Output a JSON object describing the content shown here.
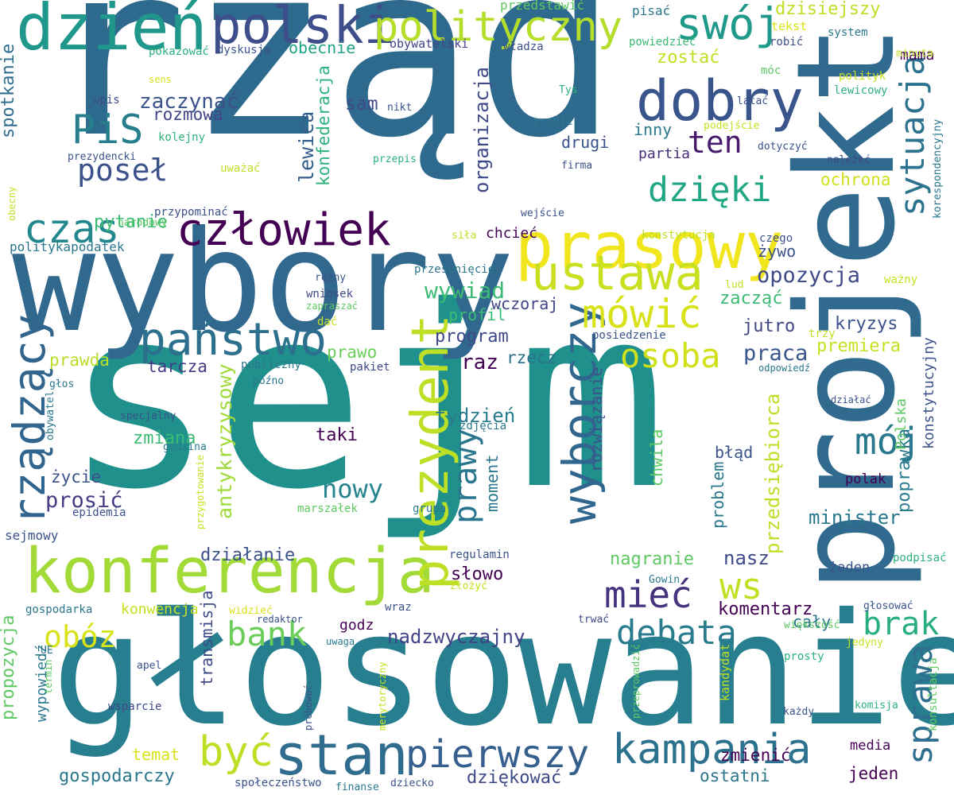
{
  "words": [
    {
      "text": "rząd",
      "color": "#2e6a8e",
      "rot": 0
    },
    {
      "text": "sejm",
      "color": "#20908d",
      "rot": 0
    },
    {
      "text": "głosowanie",
      "color": "#277e8e",
      "rot": 0
    },
    {
      "text": "wybory",
      "color": "#30688e",
      "rot": 0
    },
    {
      "text": "projekt",
      "color": "#306a8e",
      "rot": -90
    },
    {
      "text": "konferencja",
      "color": "#a2da37",
      "rot": 0
    },
    {
      "text": "prasowy",
      "color": "#f1e51d",
      "rot": 0
    },
    {
      "text": "dzień",
      "color": "#1f988b",
      "rot": 0
    },
    {
      "text": "polski",
      "color": "#3d4e8a",
      "rot": 0
    },
    {
      "text": "polityczny",
      "color": "#b5de2b",
      "rot": 0
    },
    {
      "text": "dobry",
      "color": "#39558c",
      "rot": 0
    },
    {
      "text": "swój",
      "color": "#1f9a8a",
      "rot": 0
    },
    {
      "text": "człowiek",
      "color": "#440154",
      "rot": 0
    },
    {
      "text": "ustawa",
      "color": "#c8e020",
      "rot": 0
    },
    {
      "text": "państwo",
      "color": "#2d708e",
      "rot": 0
    },
    {
      "text": "czas",
      "color": "#23888e",
      "rot": 0
    },
    {
      "text": "PiS",
      "color": "#277f8e",
      "rot": 0
    },
    {
      "text": "poseł",
      "color": "#3b528b",
      "rot": 0
    },
    {
      "text": "dzięki",
      "color": "#22a785",
      "rot": 0
    },
    {
      "text": "ten",
      "color": "#481a6c",
      "rot": 0
    },
    {
      "text": "sytuacja",
      "color": "#2c728e",
      "rot": -90
    },
    {
      "text": "wyborczy",
      "color": "#31668e",
      "rot": -90
    },
    {
      "text": "prezydent",
      "color": "#bddf26",
      "rot": -90
    },
    {
      "text": "rządzący",
      "color": "#31658e",
      "rot": -90
    },
    {
      "text": "mówić",
      "color": "#d8e219",
      "rot": 0
    },
    {
      "text": "mieć",
      "color": "#46337e",
      "rot": 0
    },
    {
      "text": "osoba",
      "color": "#d0e11c",
      "rot": 0
    },
    {
      "text": "mój",
      "color": "#2a788e",
      "rot": 0
    },
    {
      "text": "kampania",
      "color": "#2c718e",
      "rot": 0
    },
    {
      "text": "pierwszy",
      "color": "#355f8d",
      "rot": 0
    },
    {
      "text": "stan",
      "color": "#2f6c8e",
      "rot": 0
    },
    {
      "text": "być",
      "color": "#bddf26",
      "rot": 0
    },
    {
      "text": "bank",
      "color": "#6ccd5a",
      "rot": 0
    },
    {
      "text": "obóz",
      "color": "#d8e219",
      "rot": 0
    },
    {
      "text": "debata",
      "color": "#287c8e",
      "rot": 0
    },
    {
      "text": "brak",
      "color": "#29af7f",
      "rot": 0
    },
    {
      "text": "sprawa",
      "color": "#2e6e8e",
      "rot": -90
    },
    {
      "text": "ws",
      "color": "#c2df23",
      "rot": 0
    },
    {
      "text": "prawy",
      "color": "#2a768e",
      "rot": -90
    },
    {
      "text": "nowy",
      "color": "#25848e",
      "rot": 0
    },
    {
      "text": "wywiad",
      "color": "#3cbb75",
      "rot": 0
    },
    {
      "text": "opozycja",
      "color": "#3e4a89",
      "rot": 0
    },
    {
      "text": "kryzys",
      "color": "#3b528b",
      "rot": 0
    },
    {
      "text": "praca",
      "color": "#3a548c",
      "rot": 0
    },
    {
      "text": "premiera",
      "color": "#c8e020",
      "rot": 0
    },
    {
      "text": "jutro",
      "color": "#414487",
      "rot": 0
    },
    {
      "text": "raz",
      "color": "#440154",
      "rot": 0
    },
    {
      "text": "tarcza",
      "color": "#433e85",
      "rot": 0
    },
    {
      "text": "prawda",
      "color": "#bade28",
      "rot": 0
    },
    {
      "text": "prawo",
      "color": "#6ccd5a",
      "rot": 0
    },
    {
      "text": "program",
      "color": "#3e4a89",
      "rot": 0
    },
    {
      "text": "rzecz",
      "color": "#2c728e",
      "rot": 0
    },
    {
      "text": "tydzień",
      "color": "#287c8e",
      "rot": 0
    },
    {
      "text": "taki",
      "color": "#440154",
      "rot": 0
    },
    {
      "text": "zmiana",
      "color": "#3cbb75",
      "rot": 0
    },
    {
      "text": "życie",
      "color": "#3b528b",
      "rot": 0
    },
    {
      "text": "prosić",
      "color": "#433e85",
      "rot": 0
    },
    {
      "text": "antykryzysowy",
      "color": "#a0da39",
      "rot": -90
    },
    {
      "text": "lewica",
      "color": "#355f8d",
      "rot": -90
    },
    {
      "text": "konfederacja",
      "color": "#2db27d",
      "rot": -90
    },
    {
      "text": "organizacja",
      "color": "#3e4a89",
      "rot": -90
    },
    {
      "text": "spotkanie",
      "color": "#2e6e8e",
      "rot": -90
    },
    {
      "text": "zaczynać",
      "color": "#3b528b",
      "rot": 0
    },
    {
      "text": "rozmowa",
      "color": "#414487",
      "rot": 0
    },
    {
      "text": "sam",
      "color": "#3e4a89",
      "rot": 0
    },
    {
      "text": "drugi",
      "color": "#3b528b",
      "rot": 0
    },
    {
      "text": "obecnie",
      "color": "#20a386",
      "rot": 0
    },
    {
      "text": "zostać",
      "color": "#c2df23",
      "rot": 0
    },
    {
      "text": "dzisiejszy",
      "color": "#bddf26",
      "rot": 0
    },
    {
      "text": "mama",
      "color": "#440154",
      "rot": 0
    },
    {
      "text": "pytanie",
      "color": "#3cbb75",
      "rot": 0
    },
    {
      "text": "ochrona",
      "color": "#d0e11c",
      "rot": 0
    },
    {
      "text": "żywo",
      "color": "#3b528b",
      "rot": 0
    },
    {
      "text": "zacząć",
      "color": "#3cbb75",
      "rot": 0
    },
    {
      "text": "inny",
      "color": "#2a788e",
      "rot": 0
    },
    {
      "text": "partia",
      "color": "#472d7b",
      "rot": 0
    },
    {
      "text": "chcieć",
      "color": "#440154",
      "rot": 0
    },
    {
      "text": "profil",
      "color": "#3cbb75",
      "rot": 0
    },
    {
      "text": "wczoraj",
      "color": "#414487",
      "rot": 0
    },
    {
      "text": "rozwiązanie",
      "color": "#3b528b",
      "rot": -90
    },
    {
      "text": "moment",
      "color": "#2a788e",
      "rot": -90
    },
    {
      "text": "słowo",
      "color": "#440154",
      "rot": 0
    },
    {
      "text": "nagranie",
      "color": "#5ec962",
      "rot": 0
    },
    {
      "text": "komentarz",
      "color": "#440154",
      "rot": 0
    },
    {
      "text": "nasz",
      "color": "#3e4a89",
      "rot": 0
    },
    {
      "text": "minister",
      "color": "#2a788e",
      "rot": 0
    },
    {
      "text": "przedsiębiorca",
      "color": "#bddf26",
      "rot": -90
    },
    {
      "text": "poprawka",
      "color": "#287c8e",
      "rot": -90
    },
    {
      "text": "Polska",
      "color": "#5ec962",
      "rot": -90
    },
    {
      "text": "konstytucyjny",
      "color": "#3b528b",
      "rot": -90
    },
    {
      "text": "chwila",
      "color": "#5ec962",
      "rot": -90
    },
    {
      "text": "błąd",
      "color": "#3b528b",
      "rot": 0
    },
    {
      "text": "problem",
      "color": "#2a788e",
      "rot": -90
    },
    {
      "text": "polak",
      "color": "#440154",
      "rot": 0
    },
    {
      "text": "żaden",
      "color": "#3b528b",
      "rot": 0
    },
    {
      "text": "cały",
      "color": "#2a788e",
      "rot": 0
    },
    {
      "text": "nadzwyczajny",
      "color": "#414487",
      "rot": 0
    },
    {
      "text": "godz",
      "color": "#440154",
      "rot": 0
    },
    {
      "text": "konwencja",
      "color": "#c8e020",
      "rot": 0
    },
    {
      "text": "działanie",
      "color": "#3b528b",
      "rot": 0
    },
    {
      "text": "propozycja",
      "color": "#5ec962",
      "rot": -90
    },
    {
      "text": "wypowiedź",
      "color": "#2a788e",
      "rot": -90
    },
    {
      "text": "transmisja",
      "color": "#3e4a89",
      "rot": -90
    },
    {
      "text": "temat",
      "color": "#d8e219",
      "rot": 0
    },
    {
      "text": "gospodarczy",
      "color": "#2a788e",
      "rot": 0
    },
    {
      "text": "dziękować",
      "color": "#3e4a89",
      "rot": 0
    },
    {
      "text": "ostatni",
      "color": "#2a788e",
      "rot": 0
    },
    {
      "text": "zmienić",
      "color": "#440154",
      "rot": 0
    },
    {
      "text": "jeden",
      "color": "#440154",
      "rot": 0
    },
    {
      "text": "media",
      "color": "#440154",
      "rot": 0
    },
    {
      "text": "przedstawić",
      "color": "#5ec962",
      "rot": 0
    },
    {
      "text": "pisać",
      "color": "#2a788e",
      "rot": 0
    },
    {
      "text": "tekst",
      "color": "#d8e219",
      "rot": 0
    },
    {
      "text": "powiedzieć",
      "color": "#3cbb75",
      "rot": 0
    },
    {
      "text": "robić",
      "color": "#3b528b",
      "rot": 0
    },
    {
      "text": "system",
      "color": "#2a788e",
      "rot": 0
    },
    {
      "text": "minuta",
      "color": "#bddf26",
      "rot": 0
    },
    {
      "text": "pokazować",
      "color": "#2db27d",
      "rot": 0
    },
    {
      "text": "dyskusja",
      "color": "#3b528b",
      "rot": 0
    },
    {
      "text": "obywatelski",
      "color": "#414487",
      "rot": 0
    },
    {
      "text": "władza",
      "color": "#3b528b",
      "rot": 0
    },
    {
      "text": "móc",
      "color": "#5ec962",
      "rot": 0
    },
    {
      "text": "polityk",
      "color": "#c8e020",
      "rot": 0
    },
    {
      "text": "lewicowy",
      "color": "#2db27d",
      "rot": 0
    },
    {
      "text": "sens",
      "color": "#d8e219",
      "rot": 0
    },
    {
      "text": "wpis",
      "color": "#3e4a89",
      "rot": 0
    },
    {
      "text": "nikt",
      "color": "#3b528b",
      "rot": 0
    },
    {
      "text": "Tys",
      "color": "#2db27d",
      "rot": 0
    },
    {
      "text": "latać",
      "color": "#3b528b",
      "rot": 0
    },
    {
      "text": "zrobić",
      "color": "#2a788e",
      "rot": 0
    },
    {
      "text": "podejście",
      "color": "#c2df23",
      "rot": 0
    },
    {
      "text": "kolejny",
      "color": "#2db27d",
      "rot": 0
    },
    {
      "text": "dotyczyć",
      "color": "#3b528b",
      "rot": 0
    },
    {
      "text": "prezydencki",
      "color": "#3b528b",
      "rot": 0
    },
    {
      "text": "firma",
      "color": "#3b528b",
      "rot": 0
    },
    {
      "text": "należeć",
      "color": "#3e4a89",
      "rot": 0
    },
    {
      "text": "korespondencyjny",
      "color": "#2a788e",
      "rot": -90
    },
    {
      "text": "przepis",
      "color": "#2db27d",
      "rot": 0
    },
    {
      "text": "uważać",
      "color": "#bddf26",
      "rot": 0
    },
    {
      "text": "przypominać",
      "color": "#3b528b",
      "rot": 0
    },
    {
      "text": "wejście",
      "color": "#3b528b",
      "rot": 0
    },
    {
      "text": "konstytucja",
      "color": "#bddf26",
      "rot": 0
    },
    {
      "text": "czego",
      "color": "#3b528b",
      "rot": 0
    },
    {
      "text": "narodowy",
      "color": "#5ec962",
      "rot": 0
    },
    {
      "text": "obecny",
      "color": "#c8e020",
      "rot": -90
    },
    {
      "text": "siła",
      "color": "#bddf26",
      "rot": 0
    },
    {
      "text": "politykapodatek",
      "color": "#2a788e",
      "rot": 0
    },
    {
      "text": "przesunięcie",
      "color": "#2a788e",
      "rot": 0
    },
    {
      "text": "lud",
      "color": "#c2df23",
      "rot": 0
    },
    {
      "text": "ważny",
      "color": "#c8e020",
      "rot": 0
    },
    {
      "text": "różny",
      "color": "#3b528b",
      "rot": 0
    },
    {
      "text": "wniosek",
      "color": "#3e4a89",
      "rot": 0
    },
    {
      "text": "zapraszać",
      "color": "#5ec962",
      "rot": 0
    },
    {
      "text": "dać",
      "color": "#c8e020",
      "rot": 0
    },
    {
      "text": "trzy",
      "color": "#c2df23",
      "rot": 0
    },
    {
      "text": "posiedzenie",
      "color": "#3b528b",
      "rot": 0
    },
    {
      "text": "odpowiedź",
      "color": "#2a788e",
      "rot": 0
    },
    {
      "text": "głos",
      "color": "#2a788e",
      "rot": 0
    },
    {
      "text": "publiczny",
      "color": "#2a788e",
      "rot": 0
    },
    {
      "text": "pakiet",
      "color": "#3e4a89",
      "rot": 0
    },
    {
      "text": "późno",
      "color": "#2a788e",
      "rot": 0
    },
    {
      "text": "działać",
      "color": "#3b528b",
      "rot": 0
    },
    {
      "text": "specjalny",
      "color": "#3b528b",
      "rot": 0
    },
    {
      "text": "obywatel",
      "color": "#2a788e",
      "rot": -90
    },
    {
      "text": "zdjęcia",
      "color": "#2a788e",
      "rot": 0
    },
    {
      "text": "godzina",
      "color": "#2a788e",
      "rot": 0
    },
    {
      "text": "przygotowanie",
      "color": "#c8e020",
      "rot": -90
    },
    {
      "text": "epidemia",
      "color": "#3b528b",
      "rot": 0
    },
    {
      "text": "grupa",
      "color": "#2a788e",
      "rot": 0
    },
    {
      "text": "marszałek",
      "color": "#5ec962",
      "rot": 0
    },
    {
      "text": "sejmowy",
      "color": "#3b528b",
      "rot": 0
    },
    {
      "text": "regulamin",
      "color": "#3b528b",
      "rot": 0
    },
    {
      "text": "złożyć",
      "color": "#c8e020",
      "rot": 0
    },
    {
      "text": "Gowin",
      "color": "#2a788e",
      "rot": 0
    },
    {
      "text": "podpisać",
      "color": "#2db27d",
      "rot": 0
    },
    {
      "text": "gospodarka",
      "color": "#2a788e",
      "rot": 0
    },
    {
      "text": "widzieć",
      "color": "#d8e219",
      "rot": 0
    },
    {
      "text": "redaktor",
      "color": "#3b528b",
      "rot": 0
    },
    {
      "text": "wraz",
      "color": "#3b528b",
      "rot": 0
    },
    {
      "text": "trwać",
      "color": "#3e4a89",
      "rot": 0
    },
    {
      "text": "głosować",
      "color": "#3b528b",
      "rot": 0
    },
    {
      "text": "większość",
      "color": "#5ec962",
      "rot": 0
    },
    {
      "text": "jedyny",
      "color": "#c8e020",
      "rot": 0
    },
    {
      "text": "UE",
      "color": "#2a788e",
      "rot": 0
    },
    {
      "text": "apel",
      "color": "#3b528b",
      "rot": 0
    },
    {
      "text": "uwaga",
      "color": "#2a788e",
      "rot": 0
    },
    {
      "text": "merytoryczny",
      "color": "#c8e020",
      "rot": -90
    },
    {
      "text": "kandydat",
      "color": "#c2df23",
      "rot": -90
    },
    {
      "text": "prosty",
      "color": "#2db27d",
      "rot": 0
    },
    {
      "text": "konsultacja",
      "color": "#5ec962",
      "rot": -90
    },
    {
      "text": "komisja",
      "color": "#2db27d",
      "rot": 0
    },
    {
      "text": "każdy",
      "color": "#3b528b",
      "rot": 0
    },
    {
      "text": "termin",
      "color": "#5ec962",
      "rot": -90
    },
    {
      "text": "wsparcie",
      "color": "#3e4a89",
      "rot": 0
    },
    {
      "text": "próbować",
      "color": "#3b528b",
      "rot": -90
    },
    {
      "text": "przeprowadzić",
      "color": "#5ec962",
      "rot": -90
    },
    {
      "text": "społeczeństwo",
      "color": "#3b528b",
      "rot": 0
    },
    {
      "text": "finanse",
      "color": "#2a788e",
      "rot": 0
    },
    {
      "text": "dziecko",
      "color": "#3b528b",
      "rot": 0
    }
  ]
}
